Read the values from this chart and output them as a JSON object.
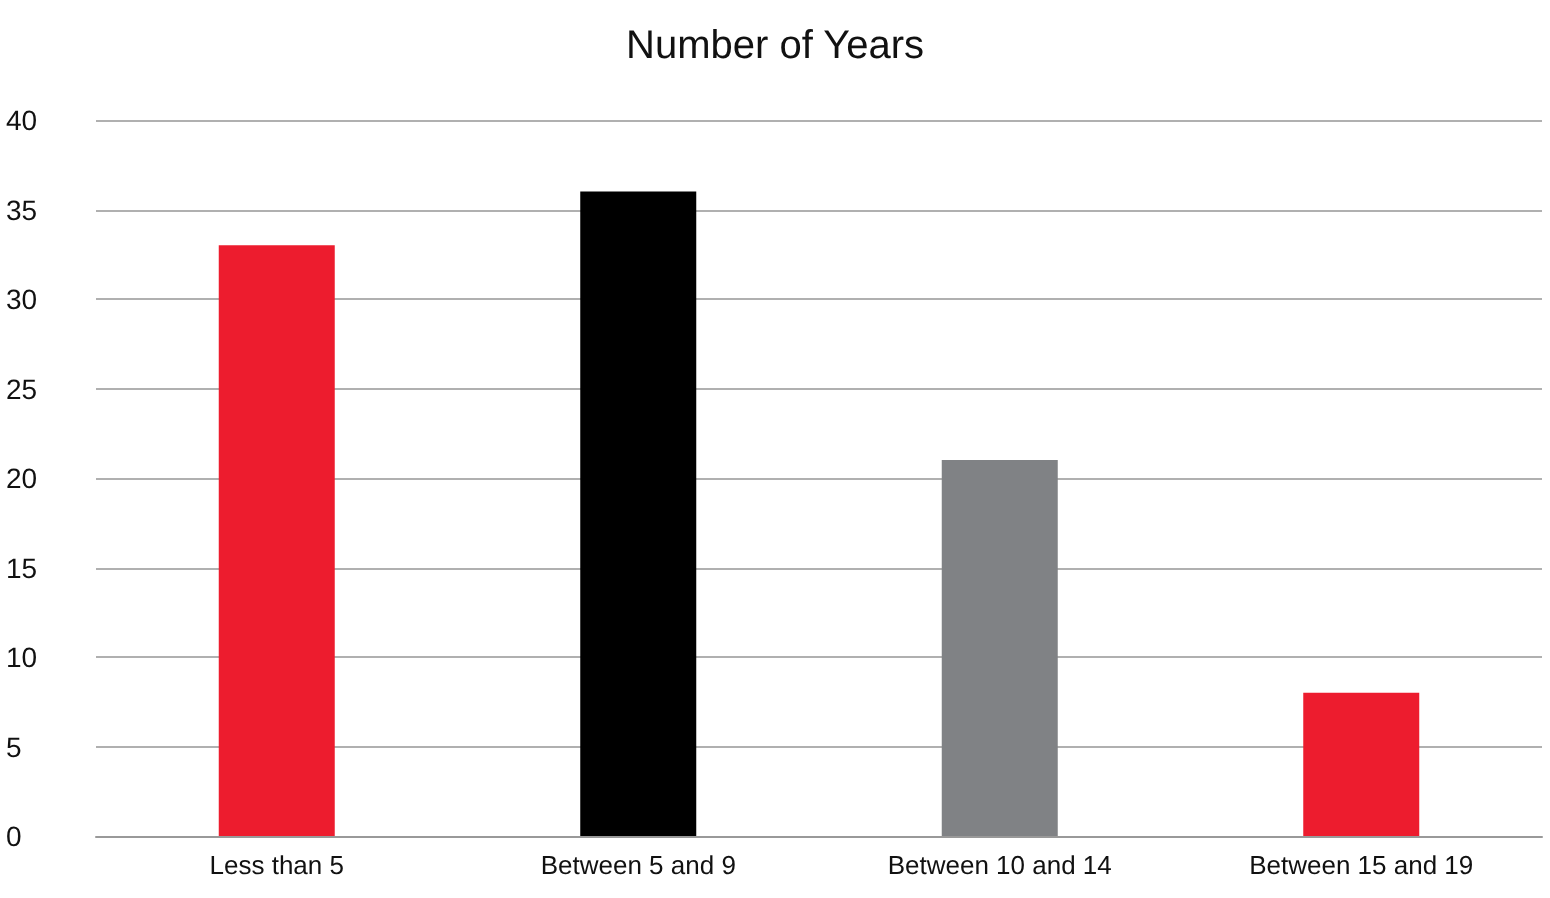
{
  "chart_data": {
    "type": "bar",
    "title": "Number of Years",
    "categories": [
      "Less than 5",
      "Between 5 and 9",
      "Between 10 and 14",
      "Between 15 and 19"
    ],
    "values": [
      33,
      36,
      21,
      8
    ],
    "colors": [
      "#ed1c2e",
      "#000000",
      "#808285",
      "#ed1c2e"
    ],
    "ylim": [
      0,
      40
    ],
    "yticks": [
      0,
      5,
      10,
      15,
      20,
      25,
      30,
      35,
      40
    ],
    "grid": "y"
  }
}
